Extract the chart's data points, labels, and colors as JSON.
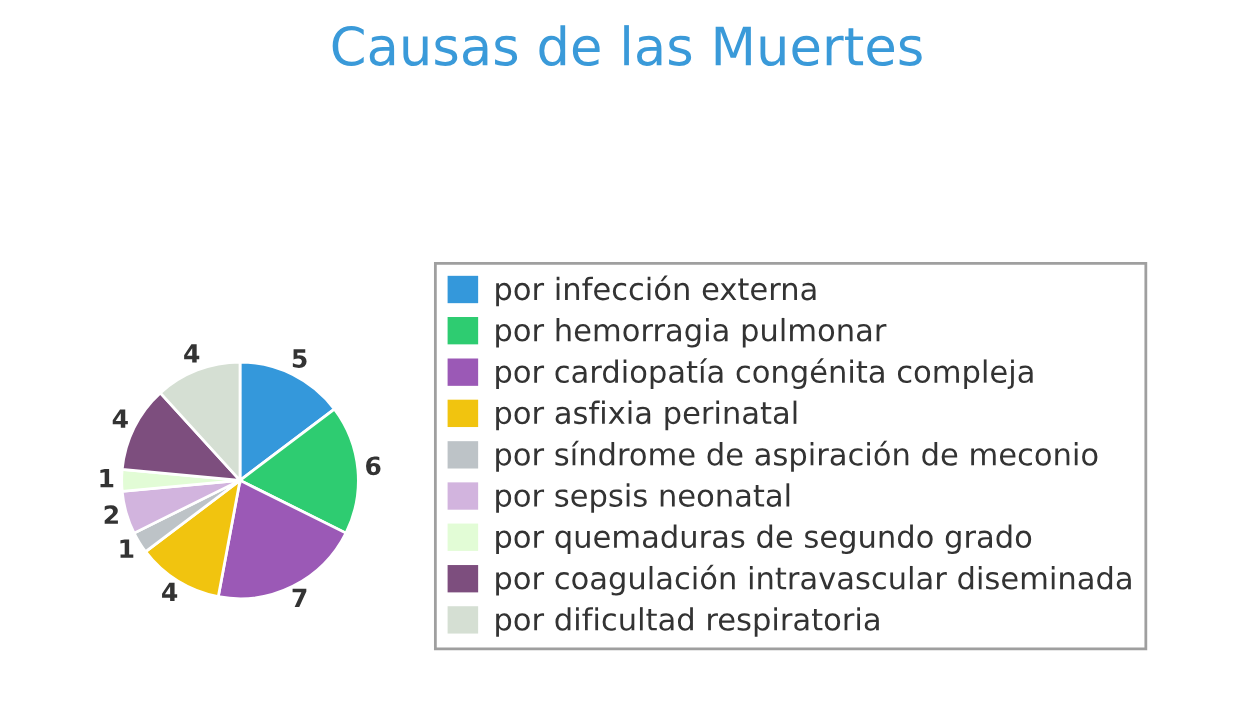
{
  "chart_data": {
    "type": "pie",
    "title": "Causas de las Muertes",
    "categories": [
      "por infección externa",
      "por hemorragia pulmonar",
      "por cardiopatía congénita compleja",
      "por asfixia perinatal",
      "por síndrome de aspiración de meconio",
      "por sepsis neonatal",
      "por quemaduras de segundo grado",
      "por coagulación intravascular diseminada",
      "por dificultad respiratoria"
    ],
    "values": [
      5,
      6,
      7,
      4,
      1,
      2,
      1,
      4,
      4
    ],
    "colors": [
      "#3498db",
      "#2ecc71",
      "#9b59b6",
      "#f1c40f",
      "#bdc3c7",
      "#d2b4de",
      "#e2fcd6",
      "#7d4e7e",
      "#d5dfd3"
    ],
    "data_labels": true,
    "legend": "right"
  }
}
